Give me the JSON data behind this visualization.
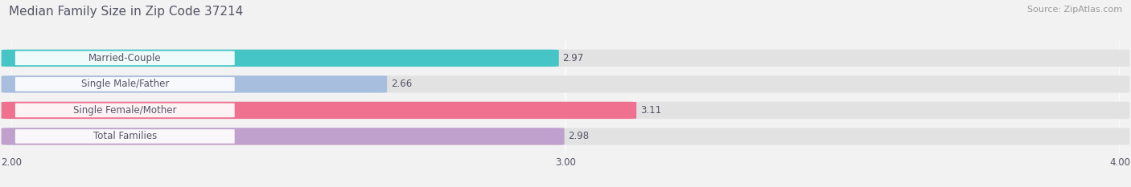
{
  "title": "Median Family Size in Zip Code 37214",
  "source": "Source: ZipAtlas.com",
  "categories": [
    "Married-Couple",
    "Single Male/Father",
    "Single Female/Mother",
    "Total Families"
  ],
  "values": [
    2.97,
    2.66,
    3.11,
    2.98
  ],
  "bar_colors": [
    "#45c5c5",
    "#a8bede",
    "#f07090",
    "#c0a0cc"
  ],
  "xlim": [
    2.0,
    4.0
  ],
  "xticks": [
    2.0,
    3.0,
    4.0
  ],
  "xtick_labels": [
    "2.00",
    "3.00",
    "4.00"
  ],
  "background_color": "#f2f2f2",
  "bar_bg_color": "#e2e2e2",
  "title_color": "#555566",
  "source_color": "#999999",
  "label_color": "#555566",
  "value_color": "#555566",
  "title_fontsize": 11,
  "source_fontsize": 8,
  "label_fontsize": 8.5,
  "value_fontsize": 8.5,
  "tick_fontsize": 8.5,
  "bar_height": 0.62,
  "figsize": [
    14.06,
    2.33
  ],
  "dpi": 100
}
